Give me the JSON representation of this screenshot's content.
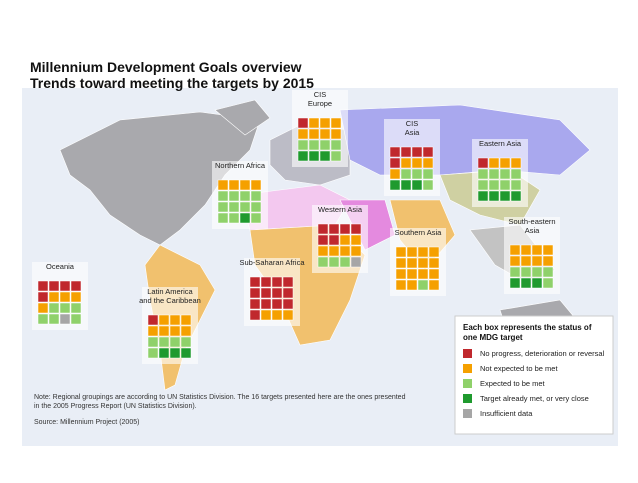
{
  "header": {
    "title": "Millennium Development Goals overview",
    "subtitle": "Trends toward meeting the targets by 2015"
  },
  "regions": [
    {
      "label": [
        "CIS",
        "Europe"
      ],
      "cells": [
        [
          0,
          1,
          1,
          1
        ],
        [
          1,
          1,
          1,
          1
        ],
        [
          2,
          2,
          2,
          2
        ],
        [
          3,
          3,
          3,
          2
        ]
      ]
    },
    {
      "label": [
        "CIS",
        "Asia"
      ],
      "cells": [
        [
          0,
          0,
          0,
          0
        ],
        [
          0,
          1,
          1,
          1
        ],
        [
          1,
          2,
          2,
          2
        ],
        [
          3,
          3,
          3,
          2
        ]
      ]
    },
    {
      "label": [
        "Eastern Asia"
      ],
      "cells": [
        [
          0,
          1,
          1,
          1
        ],
        [
          2,
          2,
          2,
          2
        ],
        [
          2,
          2,
          2,
          2
        ],
        [
          3,
          3,
          3,
          3
        ]
      ]
    },
    {
      "label": [
        "Northern Africa"
      ],
      "cells": [
        [
          1,
          1,
          1,
          1
        ],
        [
          2,
          2,
          2,
          2
        ],
        [
          2,
          2,
          2,
          2
        ],
        [
          2,
          2,
          3,
          2
        ]
      ]
    },
    {
      "label": [
        "Western Asia"
      ],
      "cells": [
        [
          0,
          0,
          0,
          0
        ],
        [
          0,
          0,
          1,
          1
        ],
        [
          1,
          1,
          1,
          1
        ],
        [
          2,
          2,
          2,
          4
        ]
      ]
    },
    {
      "label": [
        "Southern Asia"
      ],
      "cells": [
        [
          1,
          1,
          1,
          1
        ],
        [
          1,
          1,
          1,
          1
        ],
        [
          1,
          1,
          1,
          1
        ],
        [
          1,
          1,
          2,
          1
        ]
      ]
    },
    {
      "label": [
        "South-eastern",
        "Asia"
      ],
      "cells": [
        [
          1,
          1,
          1,
          1
        ],
        [
          1,
          1,
          1,
          1
        ],
        [
          2,
          2,
          2,
          2
        ],
        [
          3,
          3,
          3,
          2
        ]
      ]
    },
    {
      "label": [
        "Sub-Saharan Africa"
      ],
      "cells": [
        [
          0,
          0,
          0,
          0
        ],
        [
          0,
          0,
          0,
          0
        ],
        [
          0,
          0,
          0,
          0
        ],
        [
          0,
          1,
          1,
          1
        ]
      ]
    },
    {
      "label": [
        "Oceania"
      ],
      "cells": [
        [
          0,
          0,
          0,
          0
        ],
        [
          0,
          1,
          1,
          1
        ],
        [
          1,
          2,
          2,
          2
        ],
        [
          2,
          2,
          4,
          2
        ]
      ]
    },
    {
      "label": [
        "Latin America",
        "and the Caribbean"
      ],
      "cells": [
        [
          0,
          1,
          1,
          1
        ],
        [
          1,
          1,
          1,
          1
        ],
        [
          2,
          2,
          2,
          2
        ],
        [
          2,
          3,
          3,
          3
        ]
      ]
    }
  ],
  "legend": {
    "heading": [
      "Each box represents the status of",
      "one MDG target"
    ],
    "items": [
      {
        "label": "No progress, deterioration or reversal",
        "color": "#c0282d"
      },
      {
        "label": "Not expected to be met",
        "color": "#f5a000"
      },
      {
        "label": "Expected to be met",
        "color": "#8fd16a"
      },
      {
        "label": "Target already met, or very close",
        "color": "#1f9a2e"
      },
      {
        "label": "Insufficient data",
        "color": "#a6a6a6"
      }
    ]
  },
  "notes": [
    "Note: Regional groupings are according to UN Statistics Division. The 16 targets presented here are the ones presented",
    "in the 2005 Progress Report (UN Statistics Division).",
    "Source: Millennium Project (2005)"
  ]
}
